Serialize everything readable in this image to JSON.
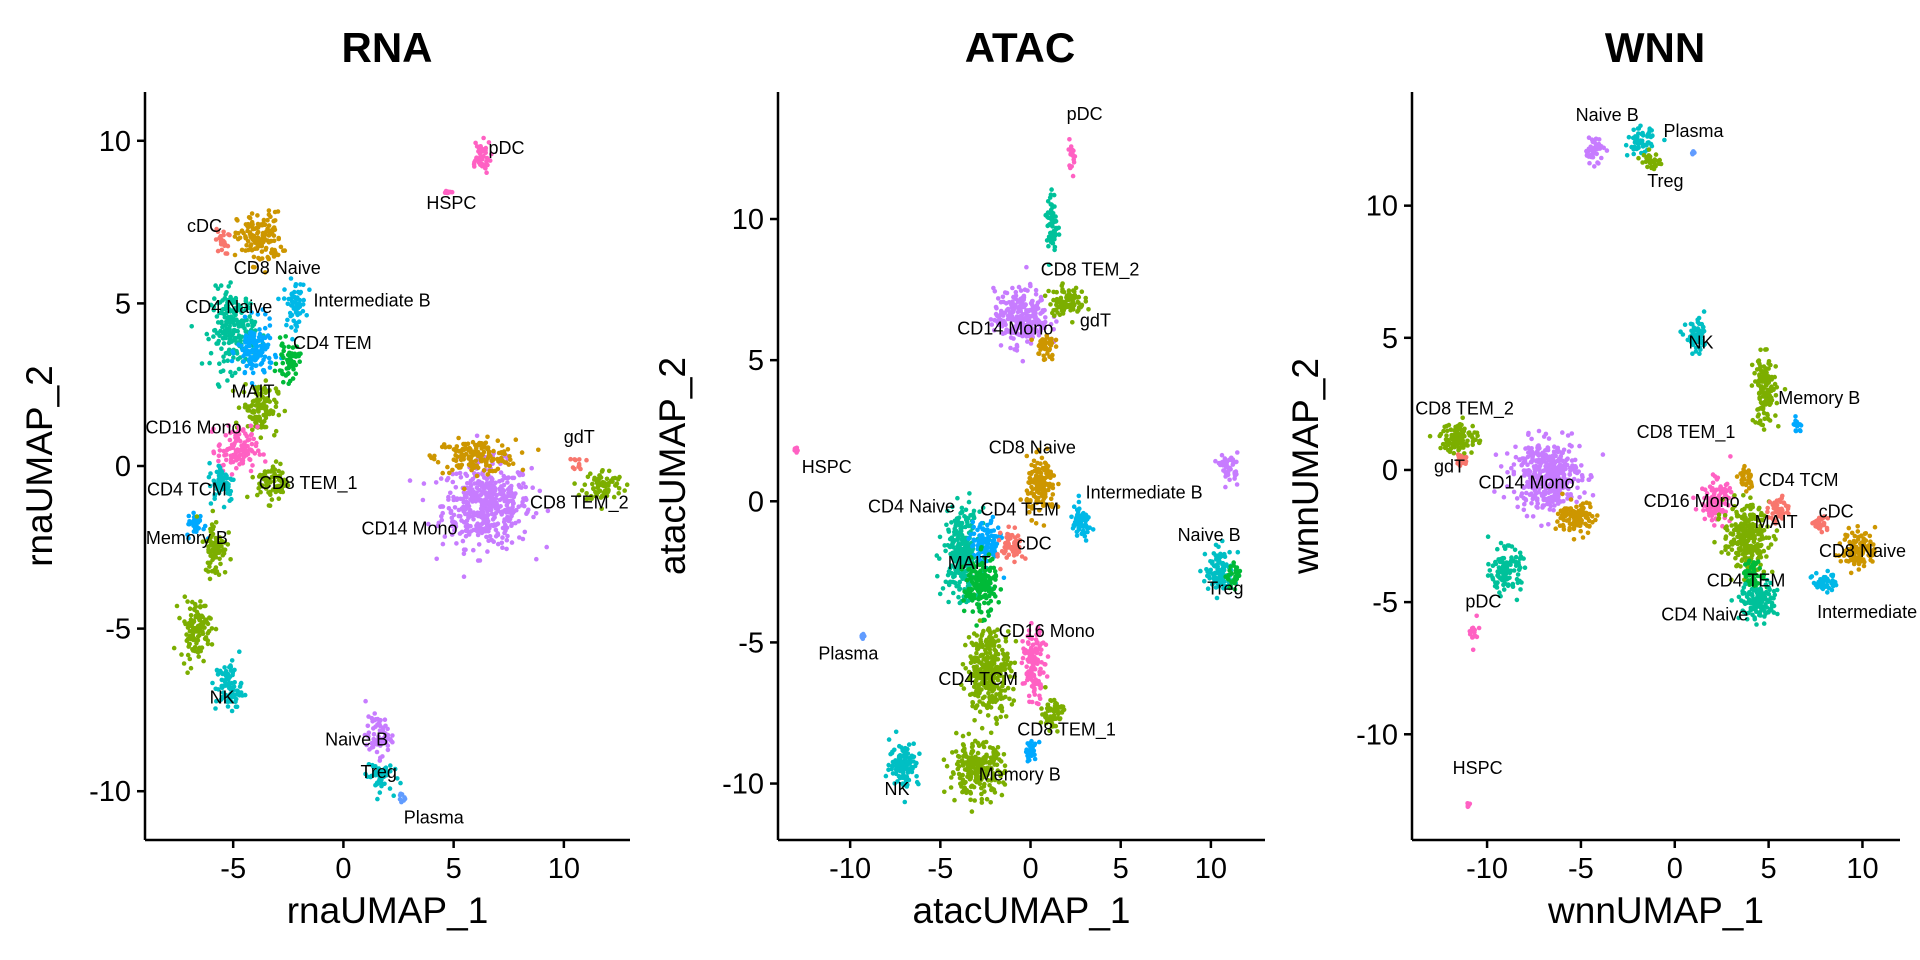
{
  "chart_data": [
    {
      "type": "scatter",
      "title": "RNA",
      "xlabel": "rnaUMAP_1",
      "ylabel": "rnaUMAP_2",
      "xlim": [
        -9,
        13
      ],
      "ylim": [
        -11.5,
        11.5
      ],
      "xticks": [
        -5,
        0,
        5,
        10
      ],
      "yticks": [
        -10,
        -5,
        0,
        5,
        10
      ],
      "grid": false,
      "legend": "none",
      "clusters": [
        {
          "name": "CD14 Mono",
          "color": "#c77cff",
          "x": 6.5,
          "y": -1.2,
          "sx": 2.0,
          "sy": 1.3
        },
        {
          "name": "CD14 Mono",
          "color": "#cd9600",
          "x": 6.0,
          "y": 0.3,
          "sx": 1.8,
          "sy": 0.5
        },
        {
          "name": "CD8 TEM_2",
          "color": "#7cae00",
          "x": 11.8,
          "y": -0.6,
          "sx": 0.9,
          "sy": 0.5
        },
        {
          "name": "gdT",
          "color": "#f8766d",
          "x": 10.7,
          "y": 0.1,
          "sx": 0.3,
          "sy": 0.2
        },
        {
          "name": "pDC",
          "color": "#ff61c3",
          "x": 6.2,
          "y": 9.5,
          "sx": 0.5,
          "sy": 0.5
        },
        {
          "name": "HSPC",
          "color": "#ff61c3",
          "x": 4.7,
          "y": 8.4,
          "sx": 0.2,
          "sy": 0.1
        },
        {
          "name": "cDC",
          "color": "#f8766d",
          "x": -5.5,
          "y": 6.9,
          "sx": 0.3,
          "sy": 0.4
        },
        {
          "name": "CD8 Naive",
          "color": "#cd9600",
          "x": -3.8,
          "y": 7.0,
          "sx": 1.0,
          "sy": 0.8
        },
        {
          "name": "Intermediate B",
          "color": "#00b8e7",
          "x": -2.2,
          "y": 5.0,
          "sx": 0.5,
          "sy": 0.7
        },
        {
          "name": "CD4 Naive",
          "color": "#00c19a",
          "x": -5.0,
          "y": 4.2,
          "sx": 1.0,
          "sy": 1.2
        },
        {
          "name": "CD4 TEM",
          "color": "#00a9ff",
          "x": -4.0,
          "y": 3.5,
          "sx": 0.8,
          "sy": 0.9
        },
        {
          "name": "CD4 TEM",
          "color": "#00ba38",
          "x": -2.5,
          "y": 3.2,
          "sx": 0.5,
          "sy": 0.6
        },
        {
          "name": "MAIT",
          "color": "#7cae00",
          "x": -3.8,
          "y": 1.8,
          "sx": 0.8,
          "sy": 0.8
        },
        {
          "name": "CD16 Mono",
          "color": "#ff61c3",
          "x": -4.8,
          "y": 0.5,
          "sx": 0.9,
          "sy": 0.7
        },
        {
          "name": "CD8 TEM_1",
          "color": "#7cae00",
          "x": -3.2,
          "y": -0.5,
          "sx": 0.7,
          "sy": 0.6
        },
        {
          "name": "CD4 TCM",
          "color": "#00bfc4",
          "x": -5.5,
          "y": -0.5,
          "sx": 0.6,
          "sy": 0.6
        },
        {
          "name": "Memory B",
          "color": "#00a9ff",
          "x": -6.7,
          "y": -1.8,
          "sx": 0.4,
          "sy": 0.4
        },
        {
          "name": "Memory B",
          "color": "#7cae00",
          "x": -5.8,
          "y": -2.5,
          "sx": 0.5,
          "sy": 0.9
        },
        {
          "name": "Memory B",
          "color": "#7cae00",
          "x": -6.7,
          "y": -5.0,
          "sx": 0.7,
          "sy": 0.9
        },
        {
          "name": "NK",
          "color": "#00bfc4",
          "x": -5.2,
          "y": -6.8,
          "sx": 0.6,
          "sy": 0.8
        },
        {
          "name": "Naive B",
          "color": "#c77cff",
          "x": 1.6,
          "y": -8.3,
          "sx": 0.6,
          "sy": 0.6
        },
        {
          "name": "Treg",
          "color": "#00bfc4",
          "x": 1.6,
          "y": -9.5,
          "sx": 0.6,
          "sy": 0.5
        },
        {
          "name": "Plasma",
          "color": "#619cff",
          "x": 2.6,
          "y": -10.2,
          "sx": 0.2,
          "sy": 0.2
        }
      ],
      "labels": [
        {
          "text": "pDC",
          "x": 7.4,
          "y": 9.6
        },
        {
          "text": "HSPC",
          "x": 4.9,
          "y": 7.9
        },
        {
          "text": "cDC",
          "x": -6.3,
          "y": 7.2
        },
        {
          "text": "CD8 Naive",
          "x": -3.0,
          "y": 5.9
        },
        {
          "text": "Intermediate B",
          "x": 1.3,
          "y": 4.9
        },
        {
          "text": "CD4 Naive",
          "x": -5.2,
          "y": 4.7
        },
        {
          "text": "CD4 TEM",
          "x": -0.5,
          "y": 3.6
        },
        {
          "text": "MAIT",
          "x": -4.1,
          "y": 2.1
        },
        {
          "text": "CD16 Mono",
          "x": -6.8,
          "y": 1.0
        },
        {
          "text": "CD8 TEM_1",
          "x": -1.6,
          "y": -0.7
        },
        {
          "text": "CD4 TCM",
          "x": -7.1,
          "y": -0.9
        },
        {
          "text": "Memory B",
          "x": -7.1,
          "y": -2.4
        },
        {
          "text": "NK",
          "x": -5.5,
          "y": -7.3
        },
        {
          "text": "gdT",
          "x": 10.7,
          "y": 0.7
        },
        {
          "text": "CD8 TEM_2",
          "x": 10.7,
          "y": -1.3
        },
        {
          "text": "CD14 Mono",
          "x": 3.0,
          "y": -2.1
        },
        {
          "text": "Naive B",
          "x": 0.6,
          "y": -8.6
        },
        {
          "text": "Treg",
          "x": 1.6,
          "y": -9.6
        },
        {
          "text": "Plasma",
          "x": 4.1,
          "y": -11.0
        }
      ]
    },
    {
      "type": "scatter",
      "title": "ATAC",
      "xlabel": "atacUMAP_1",
      "ylabel": "atacUMAP_2",
      "xlim": [
        -14,
        13
      ],
      "ylim": [
        -12,
        14.5
      ],
      "xticks": [
        -10,
        -5,
        0,
        5,
        10
      ],
      "yticks": [
        -10,
        -5,
        0,
        5,
        10
      ],
      "grid": false,
      "legend": "none",
      "clusters": [
        {
          "name": "CD14 Mono",
          "color": "#c77cff",
          "x": -0.5,
          "y": 6.5,
          "sx": 1.5,
          "sy": 1.0
        },
        {
          "name": "CD8 TEM_2",
          "color": "#7cae00",
          "x": 2.0,
          "y": 7.1,
          "sx": 1.0,
          "sy": 0.5
        },
        {
          "name": "gdT",
          "color": "#cd9600",
          "x": 0.8,
          "y": 5.5,
          "sx": 0.5,
          "sy": 0.5
        },
        {
          "name": "pDC",
          "color": "#00c19a",
          "x": 1.2,
          "y": 9.8,
          "sx": 0.3,
          "sy": 1.2
        },
        {
          "name": "pDC",
          "color": "#ff61c3",
          "x": 2.3,
          "y": 12.3,
          "sx": 0.2,
          "sy": 0.5
        },
        {
          "name": "HSPC",
          "color": "#ff61c3",
          "x": -13.0,
          "y": 1.8,
          "sx": 0.1,
          "sy": 0.1
        },
        {
          "name": "Plasma",
          "color": "#619cff",
          "x": -9.3,
          "y": -4.8,
          "sx": 0.1,
          "sy": 0.1
        },
        {
          "name": "CD8 Naive",
          "color": "#cd9600",
          "x": 0.6,
          "y": 0.5,
          "sx": 0.8,
          "sy": 1.0
        },
        {
          "name": "Intermediate B",
          "color": "#00b8e7",
          "x": 2.8,
          "y": -0.8,
          "sx": 0.6,
          "sy": 0.6
        },
        {
          "name": "CD4 Naive",
          "color": "#00c19a",
          "x": -3.8,
          "y": -1.8,
          "sx": 1.0,
          "sy": 1.5
        },
        {
          "name": "CD4 TEM",
          "color": "#00a9ff",
          "x": -2.5,
          "y": -1.5,
          "sx": 0.8,
          "sy": 0.8
        },
        {
          "name": "cDC",
          "color": "#f8766d",
          "x": -1.0,
          "y": -1.6,
          "sx": 0.6,
          "sy": 0.6
        },
        {
          "name": "MAIT",
          "color": "#00ba38",
          "x": -2.8,
          "y": -3.0,
          "sx": 0.9,
          "sy": 1.0
        },
        {
          "name": "CD16 Mono",
          "color": "#ff61c3",
          "x": 0.2,
          "y": -5.8,
          "sx": 0.6,
          "sy": 1.2
        },
        {
          "name": "CD4 TCM",
          "color": "#7cae00",
          "x": -2.3,
          "y": -6.0,
          "sx": 1.2,
          "sy": 1.5
        },
        {
          "name": "CD8 TEM_1",
          "color": "#7cae00",
          "x": 1.2,
          "y": -7.5,
          "sx": 0.6,
          "sy": 0.6
        },
        {
          "name": "Memory B",
          "color": "#00a9ff",
          "x": 0.0,
          "y": -8.8,
          "sx": 0.4,
          "sy": 0.4
        },
        {
          "name": "Memory B",
          "color": "#7cae00",
          "x": -3.0,
          "y": -9.5,
          "sx": 1.5,
          "sy": 0.9
        },
        {
          "name": "NK",
          "color": "#00bfc4",
          "x": -7.0,
          "y": -9.3,
          "sx": 0.8,
          "sy": 0.8
        },
        {
          "name": "Naive B",
          "color": "#00bfc4",
          "x": 10.5,
          "y": -2.5,
          "sx": 0.8,
          "sy": 0.8
        },
        {
          "name": "Treg",
          "color": "#00ba38",
          "x": 11.3,
          "y": -2.7,
          "sx": 0.4,
          "sy": 0.4
        },
        {
          "name": "Treg",
          "color": "#c77cff",
          "x": 11.0,
          "y": 1.2,
          "sx": 0.5,
          "sy": 0.5
        }
      ],
      "labels": [
        {
          "text": "pDC",
          "x": 3.0,
          "y": 13.5
        },
        {
          "text": "CD8 TEM_2",
          "x": 3.3,
          "y": 8.0
        },
        {
          "text": "gdT",
          "x": 3.6,
          "y": 6.2
        },
        {
          "text": "CD14 Mono",
          "x": -1.4,
          "y": 5.9
        },
        {
          "text": "HSPC",
          "x": -11.3,
          "y": 1.0
        },
        {
          "text": "CD8 Naive",
          "x": 0.1,
          "y": 1.7
        },
        {
          "text": "Intermediate B",
          "x": 6.3,
          "y": 0.1
        },
        {
          "text": "CD4 Naive",
          "x": -6.6,
          "y": -0.4
        },
        {
          "text": "CD4 TEM",
          "x": -0.6,
          "y": -0.5
        },
        {
          "text": "cDC",
          "x": 0.2,
          "y": -1.7
        },
        {
          "text": "MAIT",
          "x": -3.4,
          "y": -2.4
        },
        {
          "text": "Naive B",
          "x": 9.9,
          "y": -1.4
        },
        {
          "text": "Treg",
          "x": 10.8,
          "y": -3.3
        },
        {
          "text": "Plasma",
          "x": -10.1,
          "y": -5.6
        },
        {
          "text": "CD16 Mono",
          "x": 0.9,
          "y": -4.8
        },
        {
          "text": "CD4 TCM",
          "x": -2.9,
          "y": -6.5
        },
        {
          "text": "CD8 TEM_1",
          "x": 2.0,
          "y": -8.3
        },
        {
          "text": "Memory B",
          "x": -0.6,
          "y": -9.9
        },
        {
          "text": "NK",
          "x": -7.4,
          "y": -10.4
        }
      ]
    },
    {
      "type": "scatter",
      "title": "WNN",
      "xlabel": "wnnUMAP_1",
      "ylabel": "wnnUMAP_2",
      "xlim": [
        -14,
        12
      ],
      "ylim": [
        -14,
        14.3
      ],
      "xticks": [
        -10,
        -5,
        0,
        5,
        10
      ],
      "yticks": [
        -10,
        -5,
        0,
        5,
        10
      ],
      "grid": false,
      "legend": "none",
      "clusters": [
        {
          "name": "Naive B",
          "color": "#c77cff",
          "x": -4.3,
          "y": 12.1,
          "sx": 0.5,
          "sy": 0.5
        },
        {
          "name": "Naive B",
          "color": "#00bfc4",
          "x": -1.8,
          "y": 12.4,
          "sx": 0.7,
          "sy": 0.5
        },
        {
          "name": "Treg",
          "color": "#7cae00",
          "x": -1.3,
          "y": 11.7,
          "sx": 0.5,
          "sy": 0.3
        },
        {
          "name": "Plasma",
          "color": "#619cff",
          "x": 1.0,
          "y": 12.0,
          "sx": 0.1,
          "sy": 0.1
        },
        {
          "name": "NK",
          "color": "#00bfc4",
          "x": 1.2,
          "y": 5.0,
          "sx": 0.6,
          "sy": 0.6
        },
        {
          "name": "Memory B",
          "color": "#7cae00",
          "x": 4.8,
          "y": 3.0,
          "sx": 0.6,
          "sy": 1.3
        },
        {
          "name": "Memory B",
          "color": "#00a9ff",
          "x": 6.5,
          "y": 1.7,
          "sx": 0.3,
          "sy": 0.3
        },
        {
          "name": "CD8 TEM_2",
          "color": "#7cae00",
          "x": -11.5,
          "y": 1.2,
          "sx": 1.0,
          "sy": 0.6
        },
        {
          "name": "gdT",
          "color": "#f8766d",
          "x": -11.3,
          "y": 0.4,
          "sx": 0.3,
          "sy": 0.3
        },
        {
          "name": "CD14 Mono",
          "color": "#c77cff",
          "x": -6.8,
          "y": -0.2,
          "sx": 1.8,
          "sy": 1.3
        },
        {
          "name": "CD14 Mono",
          "color": "#cd9600",
          "x": -5.2,
          "y": -1.8,
          "sx": 1.0,
          "sy": 0.6
        },
        {
          "name": "pDC",
          "color": "#00c19a",
          "x": -9.0,
          "y": -3.8,
          "sx": 0.8,
          "sy": 0.8
        },
        {
          "name": "pDC",
          "color": "#ff61c3",
          "x": -10.7,
          "y": -6.2,
          "sx": 0.2,
          "sy": 0.5
        },
        {
          "name": "HSPC",
          "color": "#ff61c3",
          "x": -11.0,
          "y": -12.7,
          "sx": 0.1,
          "sy": 0.1
        },
        {
          "name": "CD8 TEM_1",
          "color": "#cd9600",
          "x": 3.8,
          "y": -0.3,
          "sx": 0.4,
          "sy": 0.5
        },
        {
          "name": "CD16 Mono",
          "color": "#ff61c3",
          "x": 2.2,
          "y": -1.2,
          "sx": 0.8,
          "sy": 0.8
        },
        {
          "name": "MAIT",
          "color": "#7cae00",
          "x": 3.8,
          "y": -2.5,
          "sx": 1.2,
          "sy": 1.2
        },
        {
          "name": "CD4 TCM",
          "color": "#f8766d",
          "x": 5.5,
          "y": -1.5,
          "sx": 0.5,
          "sy": 0.5
        },
        {
          "name": "cDC",
          "color": "#f8766d",
          "x": 7.8,
          "y": -2.0,
          "sx": 0.4,
          "sy": 0.4
        },
        {
          "name": "CD8 Naive",
          "color": "#cd9600",
          "x": 9.8,
          "y": -3.0,
          "sx": 0.9,
          "sy": 0.7
        },
        {
          "name": "Intermediate B",
          "color": "#00b8e7",
          "x": 8.0,
          "y": -4.2,
          "sx": 0.6,
          "sy": 0.4
        },
        {
          "name": "CD4 TEM",
          "color": "#00ba38",
          "x": 4.2,
          "y": -4.0,
          "sx": 0.6,
          "sy": 0.5
        },
        {
          "name": "CD4 Naive",
          "color": "#00c19a",
          "x": 4.5,
          "y": -5.0,
          "sx": 1.0,
          "sy": 0.7
        }
      ],
      "labels": [
        {
          "text": "Naive B",
          "x": -3.6,
          "y": 13.2
        },
        {
          "text": "Plasma",
          "x": 1.0,
          "y": 12.6
        },
        {
          "text": "Treg",
          "x": -0.5,
          "y": 10.7
        },
        {
          "text": "NK",
          "x": 1.4,
          "y": 4.6
        },
        {
          "text": "Memory B",
          "x": 7.7,
          "y": 2.5
        },
        {
          "text": "CD8 TEM_2",
          "x": -11.2,
          "y": 2.1
        },
        {
          "text": "gdT",
          "x": -12.0,
          "y": -0.1
        },
        {
          "text": "CD14 Mono",
          "x": -7.9,
          "y": -0.7
        },
        {
          "text": "CD8 TEM_1",
          "x": 0.6,
          "y": 1.2
        },
        {
          "text": "CD4 TCM",
          "x": 6.6,
          "y": -0.6
        },
        {
          "text": "CD16 Mono",
          "x": 0.9,
          "y": -1.4
        },
        {
          "text": "MAIT",
          "x": 5.4,
          "y": -2.2
        },
        {
          "text": "cDC",
          "x": 8.6,
          "y": -1.8
        },
        {
          "text": "CD8 Naive",
          "x": 10.0,
          "y": -3.3
        },
        {
          "text": "CD4 TEM",
          "x": 3.8,
          "y": -4.4
        },
        {
          "text": "CD4 Naive",
          "x": 1.6,
          "y": -5.7
        },
        {
          "text": "Intermediate B",
          "x": 10.7,
          "y": -5.6
        },
        {
          "text": "pDC",
          "x": -10.2,
          "y": -5.2
        },
        {
          "text": "HSPC",
          "x": -10.5,
          "y": -11.5
        }
      ]
    }
  ]
}
